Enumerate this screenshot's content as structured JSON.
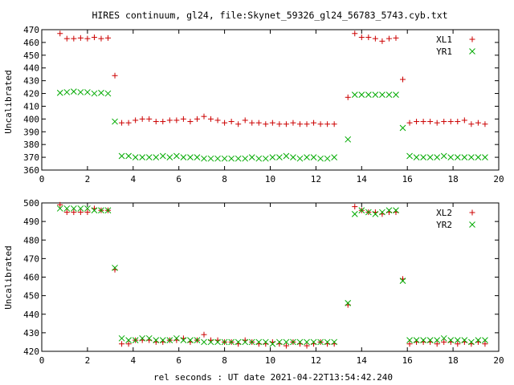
{
  "chart_data": [
    {
      "type": "scatter",
      "title": "HIRES continuum, gl24, file:Skynet_59326_gl24_56783_5743.cyb.txt",
      "ylabel": "Uncalibrated",
      "xlabel": "",
      "xlim": [
        0,
        20
      ],
      "ylim": [
        360,
        470
      ],
      "xticks": [
        0,
        2,
        4,
        6,
        8,
        10,
        12,
        14,
        16,
        18,
        20
      ],
      "yticks": [
        360,
        370,
        380,
        390,
        400,
        410,
        420,
        430,
        440,
        450,
        460,
        470
      ],
      "legend_position": "top-right",
      "series": [
        {
          "name": "XL1",
          "marker": "plus",
          "color": "#cc0000",
          "points": [
            [
              0.8,
              467
            ],
            [
              1.1,
              463
            ],
            [
              1.4,
              463
            ],
            [
              1.7,
              463.5
            ],
            [
              2.0,
              463
            ],
            [
              2.3,
              464
            ],
            [
              2.6,
              463
            ],
            [
              2.9,
              463.5
            ],
            [
              3.2,
              434
            ],
            [
              3.5,
              397
            ],
            [
              3.8,
              397
            ],
            [
              4.1,
              399
            ],
            [
              4.4,
              400
            ],
            [
              4.7,
              400
            ],
            [
              5.0,
              398
            ],
            [
              5.3,
              398
            ],
            [
              5.6,
              399
            ],
            [
              5.9,
              399
            ],
            [
              6.2,
              400
            ],
            [
              6.5,
              398
            ],
            [
              6.8,
              400
            ],
            [
              7.1,
              402
            ],
            [
              7.4,
              400
            ],
            [
              7.7,
              399
            ],
            [
              8.0,
              397
            ],
            [
              8.3,
              398
            ],
            [
              8.6,
              396
            ],
            [
              8.9,
              399
            ],
            [
              9.2,
              397
            ],
            [
              9.5,
              397
            ],
            [
              9.8,
              396
            ],
            [
              10.1,
              397
            ],
            [
              10.4,
              396
            ],
            [
              10.7,
              396
            ],
            [
              11.0,
              397
            ],
            [
              11.3,
              396
            ],
            [
              11.6,
              396
            ],
            [
              11.9,
              397
            ],
            [
              12.2,
              396
            ],
            [
              12.5,
              396
            ],
            [
              12.8,
              396
            ],
            [
              13.4,
              417
            ],
            [
              13.7,
              467
            ],
            [
              14.0,
              464
            ],
            [
              14.3,
              464
            ],
            [
              14.6,
              463
            ],
            [
              14.9,
              461
            ],
            [
              15.2,
              463
            ],
            [
              15.5,
              463.5
            ],
            [
              15.8,
              431
            ],
            [
              16.1,
              397
            ],
            [
              16.4,
              398
            ],
            [
              16.7,
              398
            ],
            [
              17.0,
              398
            ],
            [
              17.3,
              397
            ],
            [
              17.6,
              398
            ],
            [
              17.9,
              398
            ],
            [
              18.2,
              398
            ],
            [
              18.5,
              399
            ],
            [
              18.8,
              396
            ],
            [
              19.1,
              397
            ],
            [
              19.4,
              396
            ]
          ]
        },
        {
          "name": "YR1",
          "marker": "cross",
          "color": "#00aa00",
          "points": [
            [
              0.8,
              420.5
            ],
            [
              1.1,
              421
            ],
            [
              1.4,
              421.5
            ],
            [
              1.7,
              421
            ],
            [
              2.0,
              421
            ],
            [
              2.3,
              420
            ],
            [
              2.6,
              420.5
            ],
            [
              2.9,
              420
            ],
            [
              3.2,
              398
            ],
            [
              3.5,
              371
            ],
            [
              3.8,
              371
            ],
            [
              4.1,
              370
            ],
            [
              4.4,
              370
            ],
            [
              4.7,
              370
            ],
            [
              5.0,
              370
            ],
            [
              5.3,
              371
            ],
            [
              5.6,
              370
            ],
            [
              5.9,
              371
            ],
            [
              6.2,
              370
            ],
            [
              6.5,
              370
            ],
            [
              6.8,
              370
            ],
            [
              7.1,
              369
            ],
            [
              7.4,
              369
            ],
            [
              7.7,
              369
            ],
            [
              8.0,
              369
            ],
            [
              8.3,
              369
            ],
            [
              8.6,
              369
            ],
            [
              8.9,
              369
            ],
            [
              9.2,
              370
            ],
            [
              9.5,
              369
            ],
            [
              9.8,
              369
            ],
            [
              10.1,
              370
            ],
            [
              10.4,
              370
            ],
            [
              10.7,
              371
            ],
            [
              11.0,
              370
            ],
            [
              11.3,
              369
            ],
            [
              11.6,
              370
            ],
            [
              11.9,
              370
            ],
            [
              12.2,
              369
            ],
            [
              12.5,
              369
            ],
            [
              12.8,
              370
            ],
            [
              13.4,
              384
            ],
            [
              13.7,
              419
            ],
            [
              14.0,
              419
            ],
            [
              14.3,
              419
            ],
            [
              14.6,
              419
            ],
            [
              14.9,
              419
            ],
            [
              15.2,
              419
            ],
            [
              15.5,
              419
            ],
            [
              15.8,
              393
            ],
            [
              16.1,
              371
            ],
            [
              16.4,
              370
            ],
            [
              16.7,
              370
            ],
            [
              17.0,
              370
            ],
            [
              17.3,
              370
            ],
            [
              17.6,
              371
            ],
            [
              17.9,
              370
            ],
            [
              18.2,
              370
            ],
            [
              18.5,
              370
            ],
            [
              18.8,
              370
            ],
            [
              19.1,
              370
            ],
            [
              19.4,
              370
            ]
          ]
        }
      ]
    },
    {
      "type": "scatter",
      "title": "",
      "ylabel": "Uncalibrated",
      "xlabel": "rel seconds : UT date 2021-04-22T13:54:42.240",
      "xlim": [
        0,
        20
      ],
      "ylim": [
        420,
        500
      ],
      "xticks": [
        0,
        2,
        4,
        6,
        8,
        10,
        12,
        14,
        16,
        18,
        20
      ],
      "yticks": [
        420,
        430,
        440,
        450,
        460,
        470,
        480,
        490,
        500
      ],
      "legend_position": "top-right",
      "series": [
        {
          "name": "XL2",
          "marker": "plus",
          "color": "#cc0000",
          "points": [
            [
              0.8,
              499
            ],
            [
              1.1,
              495
            ],
            [
              1.4,
              495
            ],
            [
              1.7,
              495
            ],
            [
              2.0,
              495
            ],
            [
              2.3,
              497
            ],
            [
              2.6,
              496
            ],
            [
              2.9,
              496
            ],
            [
              3.2,
              464
            ],
            [
              3.5,
              424
            ],
            [
              3.8,
              424
            ],
            [
              4.1,
              426
            ],
            [
              4.4,
              426
            ],
            [
              4.7,
              426
            ],
            [
              5.0,
              425
            ],
            [
              5.3,
              425
            ],
            [
              5.6,
              426
            ],
            [
              5.9,
              426
            ],
            [
              6.2,
              427
            ],
            [
              6.5,
              425
            ],
            [
              6.8,
              426
            ],
            [
              7.1,
              429
            ],
            [
              7.4,
              426
            ],
            [
              7.7,
              426
            ],
            [
              8.0,
              425
            ],
            [
              8.3,
              425
            ],
            [
              8.6,
              424
            ],
            [
              8.9,
              426
            ],
            [
              9.2,
              425
            ],
            [
              9.5,
              424
            ],
            [
              9.8,
              424
            ],
            [
              10.1,
              425
            ],
            [
              10.4,
              424
            ],
            [
              10.7,
              423
            ],
            [
              11.0,
              425
            ],
            [
              11.3,
              424
            ],
            [
              11.6,
              423
            ],
            [
              11.9,
              424
            ],
            [
              12.2,
              425
            ],
            [
              12.5,
              424
            ],
            [
              12.8,
              424
            ],
            [
              13.4,
              445
            ],
            [
              13.7,
              498
            ],
            [
              14.0,
              496
            ],
            [
              14.3,
              495
            ],
            [
              14.6,
              495
            ],
            [
              14.9,
              494
            ],
            [
              15.2,
              495
            ],
            [
              15.5,
              495
            ],
            [
              15.8,
              459
            ],
            [
              16.1,
              424
            ],
            [
              16.4,
              425
            ],
            [
              16.7,
              425
            ],
            [
              17.0,
              425
            ],
            [
              17.3,
              424
            ],
            [
              17.6,
              425
            ],
            [
              17.9,
              425
            ],
            [
              18.2,
              424
            ],
            [
              18.5,
              425
            ],
            [
              18.8,
              424
            ],
            [
              19.1,
              425
            ],
            [
              19.4,
              424
            ]
          ]
        },
        {
          "name": "YR2",
          "marker": "cross",
          "color": "#00aa00",
          "points": [
            [
              0.8,
              497
            ],
            [
              1.1,
              497
            ],
            [
              1.4,
              497
            ],
            [
              1.7,
              497
            ],
            [
              2.0,
              497
            ],
            [
              2.3,
              496
            ],
            [
              2.6,
              496
            ],
            [
              2.9,
              496
            ],
            [
              3.2,
              465
            ],
            [
              3.5,
              427
            ],
            [
              3.8,
              426
            ],
            [
              4.1,
              426
            ],
            [
              4.4,
              427
            ],
            [
              4.7,
              427
            ],
            [
              5.0,
              426
            ],
            [
              5.3,
              426
            ],
            [
              5.6,
              426
            ],
            [
              5.9,
              427
            ],
            [
              6.2,
              426
            ],
            [
              6.5,
              426
            ],
            [
              6.8,
              426
            ],
            [
              7.1,
              425
            ],
            [
              7.4,
              425
            ],
            [
              7.7,
              425
            ],
            [
              8.0,
              425
            ],
            [
              8.3,
              425
            ],
            [
              8.6,
              425
            ],
            [
              8.9,
              425
            ],
            [
              9.2,
              425
            ],
            [
              9.5,
              425
            ],
            [
              9.8,
              425
            ],
            [
              10.1,
              424
            ],
            [
              10.4,
              425
            ],
            [
              10.7,
              425
            ],
            [
              11.0,
              425
            ],
            [
              11.3,
              425
            ],
            [
              11.6,
              425
            ],
            [
              11.9,
              425
            ],
            [
              12.2,
              425
            ],
            [
              12.5,
              425
            ],
            [
              12.8,
              425
            ],
            [
              13.4,
              446
            ],
            [
              13.7,
              494
            ],
            [
              14.0,
              496
            ],
            [
              14.3,
              495
            ],
            [
              14.6,
              494
            ],
            [
              14.9,
              495
            ],
            [
              15.2,
              496
            ],
            [
              15.5,
              496
            ],
            [
              15.8,
              458
            ],
            [
              16.1,
              426
            ],
            [
              16.4,
              426
            ],
            [
              16.7,
              426
            ],
            [
              17.0,
              426
            ],
            [
              17.3,
              426
            ],
            [
              17.6,
              427
            ],
            [
              17.9,
              426
            ],
            [
              18.2,
              426
            ],
            [
              18.5,
              426
            ],
            [
              18.8,
              425
            ],
            [
              19.1,
              426
            ],
            [
              19.4,
              426
            ]
          ]
        }
      ]
    }
  ]
}
